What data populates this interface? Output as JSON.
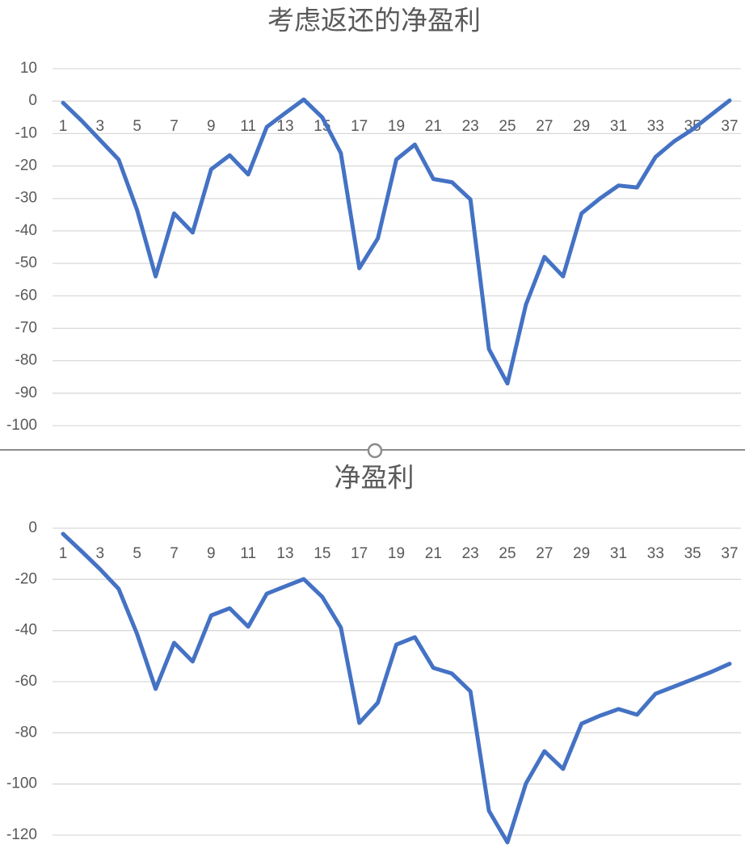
{
  "chart_data": [
    {
      "type": "line",
      "title": "考虑返还的净盈利",
      "categories": [
        1,
        null,
        3,
        null,
        5,
        null,
        7,
        null,
        9,
        null,
        11,
        null,
        13,
        null,
        15,
        null,
        17,
        null,
        19,
        null,
        21,
        null,
        23,
        null,
        25,
        null,
        27,
        null,
        29,
        null,
        31,
        null,
        33,
        null,
        35,
        null,
        37
      ],
      "values": [
        -0.5,
        -6,
        -12,
        -18,
        -33.6,
        -54,
        -34.6,
        -40.5,
        -21,
        -16.7,
        -22.6,
        -8,
        -3.7,
        0.5,
        -5,
        -16,
        -51.5,
        -42.3,
        -18,
        -13.4,
        -24,
        -25,
        -30.3,
        -76.4,
        -87,
        -62.7,
        -48,
        -54,
        -34.6,
        -30,
        -26,
        -26.6,
        -17.2,
        -12.4,
        -8.7,
        -4.2,
        0.2
      ],
      "color": "#4472c4",
      "ylim": [
        -100,
        10
      ],
      "yticks": [
        10,
        0,
        -10,
        -20,
        -30,
        -40,
        -50,
        -60,
        -70,
        -80,
        -90,
        -100
      ],
      "grid": true
    },
    {
      "type": "line",
      "title": "净盈利",
      "categories": [
        1,
        null,
        3,
        null,
        5,
        null,
        7,
        null,
        9,
        null,
        11,
        null,
        13,
        null,
        15,
        null,
        17,
        null,
        19,
        null,
        21,
        null,
        23,
        null,
        25,
        null,
        27,
        null,
        29,
        null,
        31,
        null,
        33,
        null,
        35,
        null,
        37
      ],
      "values": [
        -2.2,
        -9,
        -16,
        -23.7,
        -41.4,
        -62.8,
        -44.8,
        -52.1,
        -34.1,
        -31.3,
        -38.5,
        -25.6,
        -22.7,
        -19.9,
        -26.8,
        -38.8,
        -76.1,
        -68.2,
        -45.5,
        -42.6,
        -54.6,
        -56.8,
        -63.8,
        -110.5,
        -122.8,
        -99.8,
        -87.2,
        -94.1,
        -76.4,
        -73.3,
        -70.7,
        -72.9,
        -64.7,
        -61.9,
        -59.1,
        -56.2,
        -53
      ],
      "color": "#4472c4",
      "ylim": [
        -120,
        0
      ],
      "yticks": [
        0,
        -20,
        -40,
        -60,
        -80,
        -100,
        -120
      ],
      "grid": true
    }
  ]
}
